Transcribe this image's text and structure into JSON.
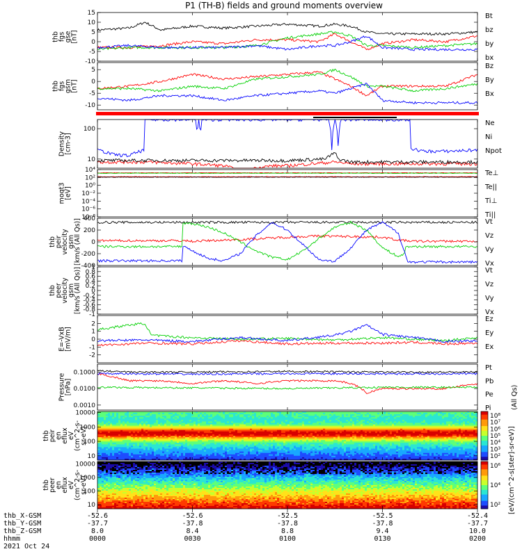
{
  "title": "P1 (TH-B) fields and ground moments overview",
  "date_label": "2021 Oct 24",
  "colorbar_unit_label": "[eV/(cm^2-s[ster]-sr-eV)]",
  "colorbar_unit_label_small": "(All Qs)",
  "ephemeris": {
    "row_labels": [
      "thb_X-GSM",
      "thb_Y-GSM",
      "thb_Z-GSM",
      "hhmm"
    ],
    "columns": [
      {
        "x": "-52.6",
        "y": "-37.7",
        "z": "8.0",
        "hhmm": "0000"
      },
      {
        "x": "-52.6",
        "y": "-37.8",
        "z": "8.4",
        "hhmm": "0030"
      },
      {
        "x": "-52.5",
        "y": "-37.8",
        "z": "8.8",
        "hhmm": "0100"
      },
      {
        "x": "-52.5",
        "y": "-37.8",
        "z": "9.4",
        "hhmm": "0130"
      },
      {
        "x": "-52.4",
        "y": "-37.7",
        "z": "10.0",
        "hhmm": "0200"
      }
    ]
  },
  "colors": {
    "black": "#000000",
    "red": "#ff0000",
    "green": "#00d000",
    "blue": "#0000ff"
  },
  "chart_data": [
    {
      "type": "line",
      "ylabel": [
        "thb",
        "fgs",
        "gse",
        "[nT]"
      ],
      "ylim": [
        -10,
        15
      ],
      "yticks": [
        15,
        10,
        5,
        0,
        -5,
        -10
      ],
      "legend": [
        {
          "name": "Bt",
          "color": "#000000"
        },
        {
          "name": "bz",
          "color": "#ff0000"
        },
        {
          "name": "by",
          "color": "#00d000"
        },
        {
          "name": "bx",
          "color": "#0000ff"
        }
      ],
      "series": [
        {
          "name": "Bt",
          "color": "#000000",
          "x": [
            0,
            10,
            15,
            20,
            30,
            40,
            50,
            60,
            70,
            75,
            80,
            85,
            90,
            100,
            110,
            120
          ],
          "values": [
            6,
            7,
            10,
            6,
            8,
            7,
            8,
            9,
            8,
            9,
            8,
            5,
            4,
            4,
            4,
            5
          ]
        },
        {
          "name": "bz",
          "color": "#ff0000",
          "x": [
            0,
            10,
            20,
            30,
            40,
            50,
            60,
            70,
            75,
            80,
            85,
            90,
            100,
            110,
            120
          ],
          "values": [
            -3,
            -3,
            -2,
            0,
            -1,
            1,
            1,
            0,
            4,
            0,
            -4,
            -1,
            1,
            0,
            3
          ]
        },
        {
          "name": "by",
          "color": "#00d000",
          "x": [
            0,
            10,
            20,
            30,
            40,
            50,
            60,
            70,
            75,
            80,
            85,
            90,
            100,
            110,
            120
          ],
          "values": [
            -4,
            -3,
            -3,
            -3,
            -3,
            -2,
            2,
            4,
            5,
            3,
            -2,
            -2,
            -3,
            -2,
            -1
          ]
        },
        {
          "name": "bx",
          "color": "#0000ff",
          "x": [
            0,
            10,
            20,
            30,
            40,
            50,
            60,
            70,
            75,
            80,
            85,
            90,
            100,
            110,
            120
          ],
          "values": [
            -3,
            -2,
            -3,
            -3,
            -3,
            -2,
            -4,
            -2,
            -2,
            0,
            3,
            -3,
            -4,
            -4,
            -4
          ]
        }
      ]
    },
    {
      "type": "line",
      "ylabel": [
        "thb",
        "fgs",
        "gsm",
        "[nT]"
      ],
      "ylim": [
        -12,
        8
      ],
      "yticks": [
        5,
        0,
        -5,
        -10
      ],
      "legend": [
        {
          "name": "Bz",
          "color": "#ff0000"
        },
        {
          "name": "By",
          "color": "#00d000"
        },
        {
          "name": "Bx",
          "color": "#0000ff"
        }
      ],
      "series": [
        {
          "name": "Bz",
          "color": "#ff0000",
          "x": [
            0,
            10,
            20,
            30,
            40,
            50,
            60,
            70,
            75,
            80,
            85,
            90,
            100,
            110,
            120
          ],
          "values": [
            -3,
            -2,
            0,
            3,
            1,
            2,
            3,
            4,
            1,
            -2,
            -6,
            -2,
            -2,
            -2,
            3
          ]
        },
        {
          "name": "By",
          "color": "#00d000",
          "x": [
            0,
            10,
            20,
            30,
            40,
            50,
            60,
            70,
            75,
            80,
            85,
            90,
            100,
            110,
            120
          ],
          "values": [
            -3,
            -3,
            -4,
            -2,
            -3,
            1,
            2,
            3,
            5,
            2,
            -2,
            -2,
            -4,
            -3,
            -1
          ]
        },
        {
          "name": "Bx",
          "color": "#0000ff",
          "x": [
            0,
            10,
            20,
            30,
            40,
            50,
            60,
            70,
            75,
            80,
            85,
            90,
            100,
            110,
            120
          ],
          "values": [
            -7,
            -8,
            -6,
            -6,
            -8,
            -6,
            -5,
            -4,
            -5,
            -3,
            -1,
            -8,
            -9,
            -9,
            -9
          ]
        }
      ]
    },
    {
      "type": "line",
      "yscale": "log",
      "ylabel": [
        "Density",
        "[cm-3]"
      ],
      "ylim": [
        5,
        200
      ],
      "yticks": [
        10,
        100
      ],
      "legend": [
        {
          "name": "Ne",
          "color": "#ff0000"
        },
        {
          "name": "Ni",
          "color": "#000000"
        },
        {
          "name": "Npot",
          "color": "#0000ff"
        }
      ],
      "series": [
        {
          "name": "Ne",
          "color": "#ff0000",
          "x": [
            0,
            15,
            30,
            40,
            45,
            50,
            55,
            60,
            75,
            80,
            90,
            100,
            110,
            120
          ],
          "values": [
            8,
            8,
            7,
            6,
            4,
            5,
            6,
            6,
            8,
            7,
            7,
            7,
            7,
            7
          ]
        },
        {
          "name": "Ni",
          "color": "#000000",
          "x": [
            0,
            15,
            30,
            45,
            60,
            72,
            75,
            76,
            80,
            90,
            100,
            110,
            120
          ],
          "values": [
            9,
            9,
            9,
            9,
            9,
            10,
            16,
            10,
            8,
            8,
            8,
            8,
            8
          ]
        },
        {
          "name": "Npot",
          "color": "#0000ff",
          "x": [
            0,
            5,
            10,
            14.9,
            15,
            31,
            31.5,
            32,
            32.5,
            33,
            73,
            74,
            75,
            76,
            77,
            98.9,
            99,
            103,
            110,
            120
          ],
          "values": [
            20,
            14,
            13,
            20,
            200,
            200,
            60,
            200,
            40,
            200,
            200,
            20,
            200,
            30,
            200,
            200,
            22,
            18,
            18,
            20
          ]
        }
      ]
    },
    {
      "type": "line",
      "yscale": "log",
      "ylabel": [
        "moqt3",
        "[eV]"
      ],
      "ylim": [
        1e-08,
        10000.0
      ],
      "yticks_text": [
        "10⁴",
        "10²",
        "10⁰",
        "10⁻²",
        "10⁻⁴",
        "10⁻⁶",
        "10⁻⁸"
      ],
      "yticks": [
        10000.0,
        100.0,
        1,
        0.01,
        0.0001,
        1e-06,
        1e-08
      ],
      "legend": [
        {
          "name": "Te⊥",
          "color": "#ff0000"
        },
        {
          "name": "Te||",
          "color": "#000000"
        },
        {
          "name": "Ti⊥",
          "color": "#ff0000"
        },
        {
          "name": "Ti||",
          "color": "#00d000"
        }
      ],
      "series": [
        {
          "name": "Te⊥",
          "color": "#ff0000",
          "x": [
            0,
            120
          ],
          "values": [
            150,
            150
          ]
        },
        {
          "name": "Te||",
          "color": "#000000",
          "x": [
            0,
            120
          ],
          "values": [
            120,
            120
          ]
        },
        {
          "name": "Ti⊥",
          "color": "#ff0000",
          "x": [
            0,
            120
          ],
          "values": [
            1500,
            1500
          ]
        },
        {
          "name": "Ti||",
          "color": "#00d000",
          "x": [
            0,
            120
          ],
          "values": [
            1200,
            1200
          ]
        }
      ]
    },
    {
      "type": "line",
      "ylabel": [
        "thb",
        "peir",
        "velocity",
        "gsm",
        "[km/s (All Qs)]"
      ],
      "ylim": [
        -400,
        400
      ],
      "yticks": [
        400,
        200,
        0,
        -200,
        -400
      ],
      "legend": [
        {
          "name": "Vt",
          "color": "#000000"
        },
        {
          "name": "Vz",
          "color": "#ff0000"
        },
        {
          "name": "Vy",
          "color": "#00d000"
        },
        {
          "name": "Vx",
          "color": "#0000ff"
        }
      ],
      "series": [
        {
          "name": "Vt",
          "color": "#000000",
          "x": [
            0,
            30,
            60,
            90,
            120
          ],
          "values": [
            330,
            330,
            330,
            330,
            330
          ]
        },
        {
          "name": "Vz",
          "color": "#ff0000",
          "x": [
            0,
            27,
            30,
            40,
            50,
            60,
            70,
            80,
            90,
            95,
            100,
            120
          ],
          "values": [
            20,
            20,
            10,
            30,
            50,
            80,
            100,
            90,
            80,
            30,
            10,
            10
          ]
        },
        {
          "name": "Vy",
          "color": "#00d000",
          "x": [
            0,
            26.9,
            27,
            30,
            35,
            40,
            45,
            50,
            55,
            60,
            65,
            70,
            75,
            80,
            85,
            90,
            95,
            97,
            97.1,
            120
          ],
          "values": [
            -80,
            -80,
            320,
            310,
            250,
            150,
            0,
            -150,
            -260,
            -300,
            -150,
            60,
            250,
            330,
            200,
            -100,
            -250,
            -200,
            -80,
            -80
          ]
        },
        {
          "name": "Vx",
          "color": "#0000ff",
          "x": [
            0,
            26.9,
            27,
            30,
            35,
            40,
            45,
            50,
            55,
            60,
            65,
            70,
            75,
            80,
            85,
            90,
            95,
            98,
            100,
            120
          ],
          "values": [
            -320,
            -320,
            -70,
            -150,
            -280,
            -320,
            -200,
            100,
            330,
            200,
            -50,
            -300,
            -330,
            -100,
            200,
            330,
            150,
            -340,
            -340,
            -340
          ]
        }
      ]
    },
    {
      "type": "line",
      "ylabel": [
        "thb",
        "peer",
        "velocity",
        "gsm",
        "[km/s (All Qs)]"
      ],
      "ylim": [
        -1.0,
        1.0
      ],
      "yticks": [
        1.0,
        0.8,
        0.6,
        0.4,
        0.2,
        0.0,
        -0.2,
        -0.4,
        -0.6,
        -0.8,
        -1.0
      ],
      "legend": [
        {
          "name": "Vt",
          "color": "#000000"
        },
        {
          "name": "Vz",
          "color": "#ff0000"
        },
        {
          "name": "Vy",
          "color": "#00d000"
        },
        {
          "name": "Vx",
          "color": "#0000ff"
        }
      ],
      "series": []
    },
    {
      "type": "line",
      "ylabel": [
        "E=-VxB",
        "[mV/m]"
      ],
      "ylim": [
        -3,
        3
      ],
      "yticks": [
        2,
        1,
        0,
        -1,
        -2
      ],
      "legend": [
        {
          "name": "Ez",
          "color": "#ff0000"
        },
        {
          "name": "Ey",
          "color": "#00d000"
        },
        {
          "name": "Ex",
          "color": "#0000ff"
        }
      ],
      "series": [
        {
          "name": "Ez",
          "color": "#ff0000",
          "x": [
            0,
            15,
            30,
            45,
            60,
            75,
            90,
            100,
            110,
            120
          ],
          "values": [
            -0.8,
            -0.5,
            -0.6,
            -0.2,
            -0.6,
            -0.5,
            -0.5,
            -0.4,
            -0.6,
            -0.5
          ]
        },
        {
          "name": "Ey",
          "color": "#00d000",
          "x": [
            0,
            10,
            15,
            17,
            20,
            30,
            45,
            60,
            75,
            90,
            100,
            110,
            120
          ],
          "values": [
            1.2,
            1.8,
            2.0,
            0.5,
            0.4,
            0.2,
            0.0,
            0.1,
            -0.1,
            0.2,
            0.0,
            -0.2,
            0.2
          ]
        },
        {
          "name": "Ex",
          "color": "#0000ff",
          "x": [
            0,
            15,
            30,
            45,
            60,
            75,
            80,
            85,
            90,
            100,
            110,
            120
          ],
          "values": [
            -0.2,
            -0.1,
            -0.3,
            0.2,
            -0.2,
            0.5,
            1.0,
            1.8,
            0.6,
            0.2,
            -0.3,
            -0.2
          ]
        }
      ]
    },
    {
      "type": "line",
      "yscale": "log",
      "ylabel": [
        "Pressure",
        "[nPa]"
      ],
      "ylim": [
        0.0005,
        0.3
      ],
      "yticks_text": [
        "0.1000",
        "0.0100",
        "0.0010"
      ],
      "yticks": [
        0.1,
        0.01,
        0.001
      ],
      "legend": [
        {
          "name": "Pt",
          "color": "#000000"
        },
        {
          "name": "Pb",
          "color": "#ff0000"
        },
        {
          "name": "Pe",
          "color": "#00d000"
        },
        {
          "name": "Pi",
          "color": "#0000ff"
        }
      ],
      "legend_note": "(All Qs)",
      "series": [
        {
          "name": "Pt",
          "color": "#000000",
          "x": [
            0,
            10,
            30,
            60,
            90,
            120
          ],
          "values": [
            0.12,
            0.1,
            0.1,
            0.11,
            0.1,
            0.1
          ]
        },
        {
          "name": "Pb",
          "color": "#ff0000",
          "x": [
            0,
            5,
            10,
            20,
            30,
            40,
            50,
            60,
            75,
            80,
            85,
            90,
            100,
            110,
            120
          ],
          "values": [
            0.08,
            0.05,
            0.03,
            0.03,
            0.02,
            0.03,
            0.02,
            0.03,
            0.03,
            0.02,
            0.005,
            0.01,
            0.01,
            0.01,
            0.02
          ]
        },
        {
          "name": "Pe",
          "color": "#00d000",
          "x": [
            0,
            30,
            60,
            90,
            120
          ],
          "values": [
            0.012,
            0.011,
            0.01,
            0.012,
            0.012
          ]
        },
        {
          "name": "Pi",
          "color": "#0000ff",
          "x": [
            0,
            30,
            60,
            90,
            120
          ],
          "values": [
            0.08,
            0.075,
            0.08,
            0.078,
            0.08
          ]
        }
      ]
    },
    {
      "type": "heatmap",
      "ylabel": [
        "thb",
        "peir",
        "en",
        "eflux",
        "eV",
        "(cm^2-s-",
        "sr-eV)"
      ],
      "yscale": "log",
      "ylim": [
        5,
        12000
      ],
      "yticks_text": [
        "10000",
        "1000",
        "100",
        "10"
      ],
      "yticks": [
        10000,
        1000,
        100,
        10
      ],
      "colorbar_ticks": [
        "10⁸",
        "10⁷",
        "10⁶",
        "10⁵",
        "10⁴",
        "10³",
        "10²"
      ]
    },
    {
      "type": "heatmap",
      "ylabel": [
        "thb",
        "peer",
        "en",
        "eflux",
        "eV",
        "(cm^2-s-",
        "sr-eV)"
      ],
      "yscale": "log",
      "ylim": [
        5,
        15000
      ],
      "yticks_text": [
        "10000",
        "1000",
        "100",
        "10"
      ],
      "yticks": [
        10000,
        1000,
        100,
        10
      ],
      "colorbar_ticks": [
        "10⁶",
        "10⁴",
        "10²"
      ]
    }
  ]
}
